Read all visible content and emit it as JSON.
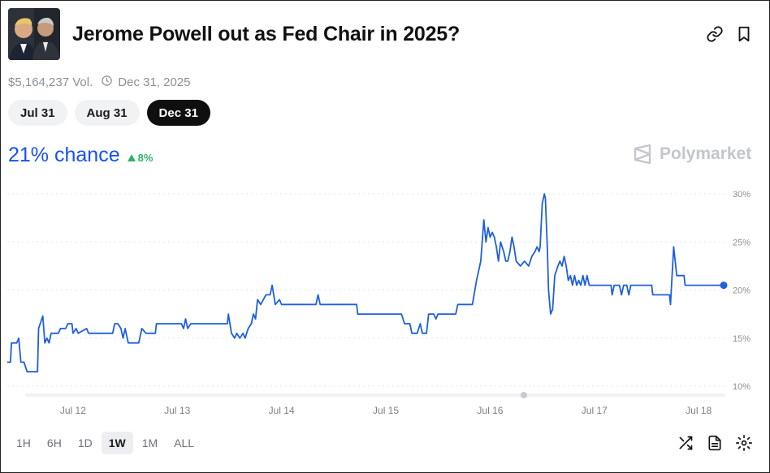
{
  "market": {
    "title": "Jerome Powell out as Fed Chair in 2025?",
    "volume": "$5,164,237 Vol.",
    "end_date": "Dec 31, 2025",
    "outcome_tabs": [
      {
        "label": "Jul 31",
        "active": false
      },
      {
        "label": "Aug 31",
        "active": false
      },
      {
        "label": "Dec 31",
        "active": true
      }
    ],
    "chance_text": "21% chance",
    "delta_text": "8%",
    "brand": "Polymarket"
  },
  "header": {
    "icons": [
      "link-icon",
      "bookmark-icon"
    ]
  },
  "time_ranges": [
    {
      "label": "1H",
      "active": false
    },
    {
      "label": "6H",
      "active": false
    },
    {
      "label": "1D",
      "active": false
    },
    {
      "label": "1W",
      "active": true
    },
    {
      "label": "1M",
      "active": false
    },
    {
      "label": "ALL",
      "active": false
    }
  ],
  "toolbar": {
    "icons": [
      "shuffle-icon",
      "document-icon",
      "gear-icon"
    ]
  },
  "colors": {
    "accent": "#1652f0",
    "positive": "#2fb36b",
    "line": "#1f5fe0"
  },
  "chart_data": {
    "type": "line",
    "title": "",
    "xlabel": "",
    "ylabel": "",
    "x_ticks": [
      "Jul 12",
      "Jul 13",
      "Jul 14",
      "Jul 15",
      "Jul 16",
      "Jul 17",
      "Jul 18"
    ],
    "x_range": [
      11.37,
      18.24
    ],
    "y_ticks": [
      "10%",
      "15%",
      "20%",
      "25%",
      "30%"
    ],
    "y_tick_values": [
      10,
      15,
      20,
      25,
      30
    ],
    "ylim": [
      10,
      30
    ],
    "grid": true,
    "grid_style": "dotted horizontal",
    "end_marker": true,
    "series": [
      {
        "points": [
          [
            11.37,
            12.5
          ],
          [
            11.4,
            12.5
          ],
          [
            11.41,
            14.5
          ],
          [
            11.46,
            14.5
          ],
          [
            11.48,
            15.0
          ],
          [
            11.5,
            12.5
          ],
          [
            11.53,
            12.5
          ],
          [
            11.56,
            11.5
          ],
          [
            11.66,
            11.5
          ],
          [
            11.67,
            16.0
          ],
          [
            11.71,
            17.3
          ],
          [
            11.73,
            14.5
          ],
          [
            11.75,
            15.0
          ],
          [
            11.77,
            14.5
          ],
          [
            11.79,
            15.5
          ],
          [
            11.86,
            15.5
          ],
          [
            11.88,
            16.0
          ],
          [
            11.93,
            16.0
          ],
          [
            11.95,
            16.5
          ],
          [
            11.99,
            16.5
          ],
          [
            12.0,
            15.5
          ],
          [
            12.03,
            16.0
          ],
          [
            12.05,
            15.5
          ],
          [
            12.13,
            16.0
          ],
          [
            12.15,
            15.5
          ],
          [
            12.38,
            15.5
          ],
          [
            12.4,
            16.5
          ],
          [
            12.43,
            16.5
          ],
          [
            12.46,
            16.0
          ],
          [
            12.48,
            15.0
          ],
          [
            12.5,
            16.0
          ],
          [
            12.53,
            14.5
          ],
          [
            12.63,
            14.5
          ],
          [
            12.66,
            16.0
          ],
          [
            12.7,
            15.5
          ],
          [
            12.79,
            15.5
          ],
          [
            12.8,
            16.5
          ],
          [
            13.04,
            16.5
          ],
          [
            13.06,
            16.0
          ],
          [
            13.08,
            17.0
          ],
          [
            13.1,
            16.0
          ],
          [
            13.13,
            16.5
          ],
          [
            13.48,
            16.5
          ],
          [
            13.49,
            17.5
          ],
          [
            13.52,
            15.5
          ],
          [
            13.55,
            15.0
          ],
          [
            13.57,
            15.5
          ],
          [
            13.6,
            15.0
          ],
          [
            13.63,
            15.5
          ],
          [
            13.65,
            15.0
          ],
          [
            13.68,
            16.0
          ],
          [
            13.71,
            16.5
          ],
          [
            13.73,
            17.5
          ],
          [
            13.75,
            17.0
          ],
          [
            13.77,
            19.0
          ],
          [
            13.8,
            18.5
          ],
          [
            13.85,
            19.5
          ],
          [
            13.89,
            19.5
          ],
          [
            13.91,
            20.5
          ],
          [
            13.94,
            18.5
          ],
          [
            13.98,
            19.0
          ],
          [
            14.0,
            18.5
          ],
          [
            14.28,
            18.5
          ],
          [
            14.33,
            18.5
          ],
          [
            14.35,
            19.5
          ],
          [
            14.37,
            18.5
          ],
          [
            14.72,
            18.5
          ],
          [
            14.73,
            17.5
          ],
          [
            15.15,
            17.5
          ],
          [
            15.18,
            16.5
          ],
          [
            15.23,
            16.5
          ],
          [
            15.25,
            15.5
          ],
          [
            15.3,
            15.5
          ],
          [
            15.33,
            16.5
          ],
          [
            15.35,
            15.5
          ],
          [
            15.39,
            15.5
          ],
          [
            15.41,
            17.5
          ],
          [
            15.46,
            17.5
          ],
          [
            15.48,
            17.0
          ],
          [
            15.5,
            17.5
          ],
          [
            15.67,
            17.5
          ],
          [
            15.69,
            18.5
          ],
          [
            15.83,
            18.5
          ],
          [
            15.87,
            21.0
          ],
          [
            15.91,
            23.0
          ],
          [
            15.94,
            27.3
          ],
          [
            15.96,
            25.0
          ],
          [
            15.98,
            26.5
          ],
          [
            16.0,
            25.5
          ],
          [
            16.02,
            26.0
          ],
          [
            16.04,
            25.5
          ],
          [
            16.06,
            24.5
          ],
          [
            16.08,
            23.0
          ],
          [
            16.1,
            25.0
          ],
          [
            16.13,
            24.0
          ],
          [
            16.15,
            23.0
          ],
          [
            16.17,
            23.0
          ],
          [
            16.19,
            24.0
          ],
          [
            16.21,
            25.5
          ],
          [
            16.23,
            24.5
          ],
          [
            16.25,
            23.0
          ],
          [
            16.29,
            22.5
          ],
          [
            16.33,
            23.0
          ],
          [
            16.37,
            22.5
          ],
          [
            16.4,
            23.5
          ],
          [
            16.43,
            24.0
          ],
          [
            16.45,
            24.5
          ],
          [
            16.47,
            24.0
          ],
          [
            16.48,
            24.5
          ],
          [
            16.5,
            29.0
          ],
          [
            16.52,
            30.0
          ],
          [
            16.53,
            29.5
          ],
          [
            16.55,
            24.0
          ],
          [
            16.56,
            20.0
          ],
          [
            16.58,
            17.5
          ],
          [
            16.6,
            18.0
          ],
          [
            16.62,
            21.5
          ],
          [
            16.65,
            22.5
          ],
          [
            16.67,
            23.0
          ],
          [
            16.69,
            22.5
          ],
          [
            16.71,
            23.5
          ],
          [
            16.73,
            22.5
          ],
          [
            16.75,
            21.0
          ],
          [
            16.77,
            21.5
          ],
          [
            16.79,
            20.5
          ],
          [
            16.81,
            21.5
          ],
          [
            16.83,
            20.5
          ],
          [
            16.85,
            21.0
          ],
          [
            16.87,
            20.5
          ],
          [
            16.89,
            21.5
          ],
          [
            16.91,
            20.5
          ],
          [
            16.93,
            21.5
          ],
          [
            16.95,
            20.5
          ],
          [
            17.03,
            20.5
          ],
          [
            17.05,
            20.5
          ],
          [
            17.16,
            20.5
          ],
          [
            17.17,
            19.5
          ],
          [
            17.19,
            20.5
          ],
          [
            17.24,
            20.5
          ],
          [
            17.26,
            19.5
          ],
          [
            17.28,
            20.5
          ],
          [
            17.31,
            20.5
          ],
          [
            17.33,
            19.5
          ],
          [
            17.35,
            20.5
          ],
          [
            17.55,
            20.5
          ],
          [
            17.56,
            19.5
          ],
          [
            17.72,
            19.5
          ],
          [
            17.73,
            18.5
          ],
          [
            17.76,
            24.5
          ],
          [
            17.79,
            21.5
          ],
          [
            17.86,
            21.5
          ],
          [
            17.87,
            20.5
          ],
          [
            18.05,
            20.5
          ],
          [
            18.24,
            20.5
          ]
        ]
      }
    ]
  }
}
